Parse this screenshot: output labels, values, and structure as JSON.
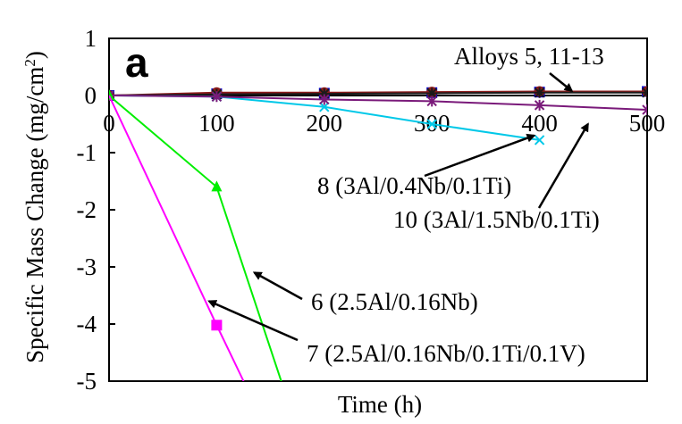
{
  "chart_data": {
    "type": "line",
    "panel_label": "a",
    "xlabel": "Time (h)",
    "ylabel_main": "Specific Mass Change (mg/cm",
    "ylabel_sup": "2",
    "ylabel_close": ")",
    "xlim": [
      0,
      500
    ],
    "ylim": [
      -5,
      1
    ],
    "x_ticks": [
      0,
      100,
      200,
      300,
      400,
      500
    ],
    "x_tick_labels": [
      "0",
      "100",
      "200",
      "300",
      "400",
      "500"
    ],
    "y_ticks": [
      1,
      0,
      -1,
      -2,
      -3,
      -4,
      -5
    ],
    "y_tick_labels": [
      "1",
      "0",
      "-1",
      "-2",
      "-3",
      "-4",
      "-5"
    ],
    "grid": false,
    "legend": "none",
    "series": [
      {
        "color": "#0000cc",
        "marker": "square",
        "x": [
          0,
          100,
          200,
          300,
          400,
          500
        ],
        "y": [
          0,
          0.03,
          0.04,
          0.05,
          0.06,
          0.07
        ]
      },
      {
        "color": "#8b1a1a",
        "marker": "circle",
        "x": [
          0,
          100,
          200,
          300,
          400,
          500
        ],
        "y": [
          0,
          0.05,
          0.05,
          0.06,
          0.07,
          0.07
        ]
      },
      {
        "color": "#1a1a1a",
        "marker": "star",
        "x": [
          0,
          100,
          200,
          300,
          400,
          500
        ],
        "y": [
          0,
          0.02,
          0.03,
          0.04,
          0.05,
          0.05
        ]
      },
      {
        "color": "#00c8e8",
        "marker": "x",
        "x": [
          0,
          100,
          200,
          300,
          400
        ],
        "y": [
          0,
          -0.02,
          -0.2,
          -0.5,
          -0.78
        ]
      },
      {
        "color": "#7a1a7a",
        "marker": "star",
        "x": [
          0,
          100,
          200,
          300,
          400,
          500
        ],
        "y": [
          0,
          -0.02,
          -0.07,
          -0.1,
          -0.17,
          -0.25
        ]
      },
      {
        "color": "#00ee00",
        "marker": "triangle",
        "x": [
          0,
          100,
          160
        ],
        "y": [
          0,
          -1.6,
          -5.0
        ]
      },
      {
        "color": "#ff00ff",
        "marker": "square",
        "x": [
          0,
          100,
          125
        ],
        "y": [
          0,
          -4.02,
          -5.0
        ],
        "marker_points": [
          1
        ]
      }
    ],
    "annotations": [
      {
        "text": "Alloys 5, 11-13",
        "arrow_to": [
          430,
          0.08
        ]
      },
      {
        "text": "8 (3Al/0.4Nb/0.1Ti)",
        "arrow_to": [
          395,
          -0.7
        ]
      },
      {
        "text": "10 (3Al/1.5Nb/0.1Ti)",
        "arrow_to": [
          445,
          -0.5
        ]
      },
      {
        "text": "6 (2.5Al/0.16Nb)",
        "arrow_to": [
          135,
          -3.1
        ]
      },
      {
        "text": "7 (2.5Al/0.16Nb/0.1Ti/0.1V)",
        "arrow_to": [
          93,
          -3.6
        ]
      }
    ]
  }
}
